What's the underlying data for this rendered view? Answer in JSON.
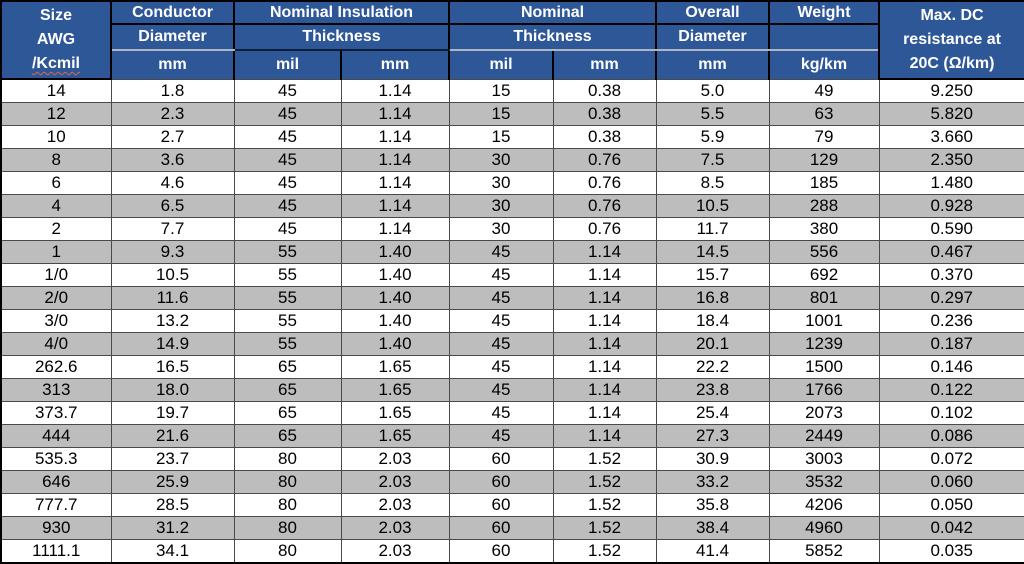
{
  "colors": {
    "header_bg": "#2E5797",
    "header_text": "#FFFFFF",
    "stripe_gray": "#BDBDBD",
    "row_white": "#FFFFFF",
    "border_black": "#000000",
    "header_gray_separator": "#AEB6C4",
    "spellcheck_underline_red": "#E06650"
  },
  "table": {
    "header": {
      "size": {
        "lines": [
          "Size",
          "AWG",
          "/Kcmil"
        ]
      },
      "conductor": {
        "line1": "Conductor",
        "line2": "Diameter",
        "unit": "mm"
      },
      "insulation": {
        "line1": "Nominal Insulation",
        "line2": "Thickness",
        "unit_mil": "mil",
        "unit_mm": "mm"
      },
      "nominal": {
        "line1": "Nominal",
        "line2": "Thickness",
        "unit_mil": "mil",
        "unit_mm": "mm"
      },
      "overall": {
        "line1": "Overall",
        "line2": "Diameter",
        "unit": "mm"
      },
      "weight": {
        "line1": "Weight",
        "line2": "",
        "unit": "kg/km"
      },
      "resistance": {
        "lines": [
          "Max. DC",
          "resistance at",
          "20C (Ω/km)"
        ]
      }
    },
    "rows": [
      [
        "14",
        "1.8",
        "45",
        "1.14",
        "15",
        "0.38",
        "5.0",
        "49",
        "9.250"
      ],
      [
        "12",
        "2.3",
        "45",
        "1.14",
        "15",
        "0.38",
        "5.5",
        "63",
        "5.820"
      ],
      [
        "10",
        "2.7",
        "45",
        "1.14",
        "15",
        "0.38",
        "5.9",
        "79",
        "3.660"
      ],
      [
        "8",
        "3.6",
        "45",
        "1.14",
        "30",
        "0.76",
        "7.5",
        "129",
        "2.350"
      ],
      [
        "6",
        "4.6",
        "45",
        "1.14",
        "30",
        "0.76",
        "8.5",
        "185",
        "1.480"
      ],
      [
        "4",
        "6.5",
        "45",
        "1.14",
        "30",
        "0.76",
        "10.5",
        "288",
        "0.928"
      ],
      [
        "2",
        "7.7",
        "45",
        "1.14",
        "30",
        "0.76",
        "11.7",
        "380",
        "0.590"
      ],
      [
        "1",
        "9.3",
        "55",
        "1.40",
        "45",
        "1.14",
        "14.5",
        "556",
        "0.467"
      ],
      [
        "1/0",
        "10.5",
        "55",
        "1.40",
        "45",
        "1.14",
        "15.7",
        "692",
        "0.370"
      ],
      [
        "2/0",
        "11.6",
        "55",
        "1.40",
        "45",
        "1.14",
        "16.8",
        "801",
        "0.297"
      ],
      [
        "3/0",
        "13.2",
        "55",
        "1.40",
        "45",
        "1.14",
        "18.4",
        "1001",
        "0.236"
      ],
      [
        "4/0",
        "14.9",
        "55",
        "1.40",
        "45",
        "1.14",
        "20.1",
        "1239",
        "0.187"
      ],
      [
        "262.6",
        "16.5",
        "65",
        "1.65",
        "45",
        "1.14",
        "22.2",
        "1500",
        "0.146"
      ],
      [
        "313",
        "18.0",
        "65",
        "1.65",
        "45",
        "1.14",
        "23.8",
        "1766",
        "0.122"
      ],
      [
        "373.7",
        "19.7",
        "65",
        "1.65",
        "45",
        "1.14",
        "25.4",
        "2073",
        "0.102"
      ],
      [
        "444",
        "21.6",
        "65",
        "1.65",
        "45",
        "1.14",
        "27.3",
        "2449",
        "0.086"
      ],
      [
        "535.3",
        "23.7",
        "80",
        "2.03",
        "60",
        "1.52",
        "30.9",
        "3003",
        "0.072"
      ],
      [
        "646",
        "25.9",
        "80",
        "2.03",
        "60",
        "1.52",
        "33.2",
        "3532",
        "0.060"
      ],
      [
        "777.7",
        "28.5",
        "80",
        "2.03",
        "60",
        "1.52",
        "35.8",
        "4206",
        "0.050"
      ],
      [
        "930",
        "31.2",
        "80",
        "2.03",
        "60",
        "1.52",
        "38.4",
        "4960",
        "0.042"
      ],
      [
        "1111.1",
        "34.1",
        "80",
        "2.03",
        "60",
        "1.52",
        "41.4",
        "5852",
        "0.035"
      ]
    ]
  }
}
